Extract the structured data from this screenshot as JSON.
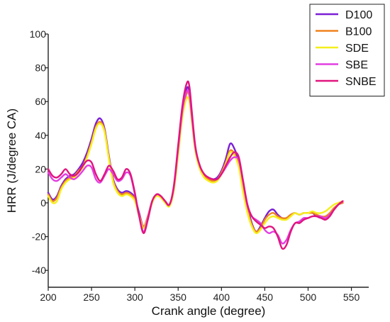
{
  "chart_data": {
    "type": "line",
    "title": "",
    "xlabel": "Crank angle (degree)",
    "ylabel": "HRR (J/degree CA)",
    "xlim": [
      200,
      570
    ],
    "ylim": [
      -50,
      100
    ],
    "xticks": [
      200,
      250,
      300,
      350,
      400,
      450,
      500,
      550
    ],
    "yticks": [
      -40,
      -20,
      0,
      20,
      40,
      60,
      80,
      100
    ],
    "grid": false,
    "legend_position": "top-right",
    "series": [
      {
        "name": "D100",
        "color": "#7b1fd6",
        "x": [
          200,
          205,
          210,
          215,
          220,
          225,
          230,
          235,
          240,
          245,
          250,
          255,
          260,
          265,
          270,
          275,
          280,
          285,
          290,
          295,
          300,
          305,
          310,
          315,
          320,
          325,
          330,
          335,
          340,
          345,
          350,
          355,
          360,
          363,
          366,
          370,
          375,
          380,
          385,
          390,
          395,
          400,
          405,
          410,
          415,
          420,
          425,
          430,
          435,
          440,
          445,
          450,
          455,
          460,
          465,
          470,
          475,
          480,
          485,
          490,
          495,
          500,
          505,
          510,
          515,
          520,
          525,
          530,
          535,
          540
        ],
        "y": [
          6,
          2,
          4,
          10,
          14,
          16,
          17,
          20,
          24,
          30,
          38,
          47,
          50,
          44,
          28,
          14,
          8,
          6,
          7,
          6,
          3,
          -6,
          -14,
          -8,
          1,
          5,
          4,
          1,
          -1,
          8,
          30,
          55,
          68,
          65,
          50,
          32,
          22,
          17,
          15,
          14,
          15,
          19,
          26,
          35,
          32,
          24,
          10,
          -2,
          -12,
          -17,
          -14,
          -9,
          -5,
          -4,
          -7,
          -9,
          -9,
          -7,
          -6,
          -7,
          -6,
          -6,
          -6,
          -8,
          -9,
          -9,
          -7,
          -4,
          -1,
          0
        ]
      },
      {
        "name": "B100",
        "color": "#f0841e",
        "x": [
          200,
          205,
          210,
          215,
          220,
          225,
          230,
          235,
          240,
          245,
          250,
          255,
          260,
          265,
          270,
          275,
          280,
          285,
          290,
          295,
          300,
          305,
          310,
          315,
          320,
          325,
          330,
          335,
          340,
          345,
          350,
          355,
          360,
          363,
          366,
          370,
          375,
          380,
          385,
          390,
          395,
          400,
          405,
          410,
          415,
          420,
          425,
          430,
          435,
          440,
          445,
          450,
          455,
          460,
          465,
          470,
          475,
          480,
          485,
          490,
          495,
          500,
          505,
          510,
          515,
          520,
          525,
          530,
          535,
          540
        ],
        "y": [
          5,
          1,
          3,
          9,
          13,
          15,
          16,
          19,
          22,
          28,
          36,
          45,
          48,
          43,
          27,
          13,
          7,
          5,
          6,
          5,
          2,
          -7,
          -14,
          -8,
          1,
          5,
          4,
          1,
          -1,
          8,
          30,
          53,
          65,
          63,
          49,
          31,
          21,
          16,
          14,
          13,
          14,
          18,
          24,
          31,
          29,
          22,
          8,
          -4,
          -13,
          -17,
          -15,
          -10,
          -7,
          -6,
          -8,
          -9,
          -9,
          -7,
          -6,
          -7,
          -6,
          -6,
          -6,
          -7,
          -8,
          -8,
          -6,
          -3,
          -1,
          0
        ]
      },
      {
        "name": "SDE",
        "color": "#f5ef1d",
        "x": [
          200,
          205,
          210,
          215,
          220,
          225,
          230,
          235,
          240,
          245,
          250,
          255,
          260,
          265,
          270,
          275,
          280,
          285,
          290,
          295,
          300,
          305,
          310,
          315,
          320,
          325,
          330,
          335,
          340,
          345,
          350,
          355,
          360,
          363,
          366,
          370,
          375,
          380,
          385,
          390,
          395,
          400,
          405,
          410,
          415,
          420,
          425,
          430,
          435,
          440,
          445,
          450,
          455,
          460,
          465,
          470,
          475,
          480,
          485,
          490,
          495,
          500,
          505,
          510,
          515,
          520,
          525,
          530,
          535,
          540
        ],
        "y": [
          4,
          0,
          1,
          8,
          12,
          14,
          15,
          18,
          21,
          27,
          35,
          44,
          47,
          42,
          26,
          12,
          6,
          4,
          5,
          4,
          1,
          -8,
          -15,
          -9,
          0,
          4,
          3,
          0,
          -2,
          7,
          28,
          51,
          62,
          60,
          47,
          30,
          20,
          15,
          13,
          12,
          13,
          17,
          23,
          30,
          28,
          21,
          6,
          -6,
          -14,
          -18,
          -16,
          -12,
          -9,
          -8,
          -9,
          -10,
          -10,
          -8,
          -6,
          -7,
          -6,
          -6,
          -5,
          -6,
          -6,
          -5,
          -3,
          -1,
          0,
          1
        ]
      },
      {
        "name": "SBE",
        "color": "#e23ee2",
        "x": [
          200,
          205,
          210,
          215,
          220,
          225,
          230,
          235,
          240,
          245,
          250,
          255,
          260,
          265,
          270,
          275,
          280,
          285,
          290,
          295,
          300,
          305,
          310,
          315,
          320,
          325,
          330,
          335,
          340,
          345,
          350,
          355,
          360,
          363,
          366,
          370,
          375,
          380,
          385,
          390,
          395,
          400,
          405,
          410,
          415,
          420,
          425,
          430,
          435,
          440,
          445,
          450,
          455,
          460,
          465,
          470,
          475,
          480,
          485,
          490,
          495,
          500,
          505,
          510,
          515,
          520,
          525,
          530,
          535,
          540
        ],
        "y": [
          18,
          14,
          13,
          15,
          17,
          15,
          14,
          16,
          19,
          22,
          21,
          14,
          12,
          16,
          20,
          17,
          13,
          14,
          18,
          16,
          5,
          -8,
          -17,
          -9,
          1,
          5,
          4,
          1,
          -1,
          9,
          32,
          55,
          66,
          64,
          50,
          32,
          22,
          17,
          15,
          14,
          14,
          17,
          21,
          25,
          27,
          25,
          12,
          -2,
          -8,
          -10,
          -12,
          -16,
          -18,
          -17,
          -19,
          -24,
          -22,
          -16,
          -12,
          -11,
          -9,
          -9,
          -8,
          -8,
          -8,
          -9,
          -7,
          -4,
          -1,
          1
        ]
      },
      {
        "name": "SNBE",
        "color": "#e0157e",
        "x": [
          200,
          205,
          210,
          215,
          220,
          225,
          230,
          235,
          240,
          245,
          250,
          255,
          260,
          265,
          270,
          275,
          280,
          285,
          290,
          295,
          300,
          305,
          310,
          315,
          320,
          325,
          330,
          335,
          340,
          345,
          350,
          355,
          360,
          363,
          366,
          370,
          375,
          380,
          385,
          390,
          395,
          400,
          405,
          410,
          415,
          420,
          425,
          430,
          435,
          440,
          445,
          450,
          455,
          460,
          465,
          470,
          475,
          480,
          485,
          490,
          495,
          500,
          505,
          510,
          515,
          520,
          525,
          530,
          535,
          540
        ],
        "y": [
          20,
          16,
          15,
          17,
          20,
          17,
          16,
          18,
          22,
          25,
          24,
          17,
          13,
          17,
          22,
          19,
          14,
          15,
          20,
          17,
          6,
          -8,
          -18,
          -10,
          1,
          5,
          4,
          1,
          -1,
          10,
          34,
          58,
          71,
          69,
          53,
          33,
          22,
          17,
          15,
          14,
          14,
          17,
          22,
          27,
          30,
          27,
          13,
          -1,
          -8,
          -11,
          -13,
          -15,
          -14,
          -15,
          -20,
          -27,
          -25,
          -17,
          -12,
          -12,
          -10,
          -9,
          -8,
          -8,
          -9,
          -10,
          -8,
          -4,
          -1,
          1
        ]
      }
    ]
  }
}
